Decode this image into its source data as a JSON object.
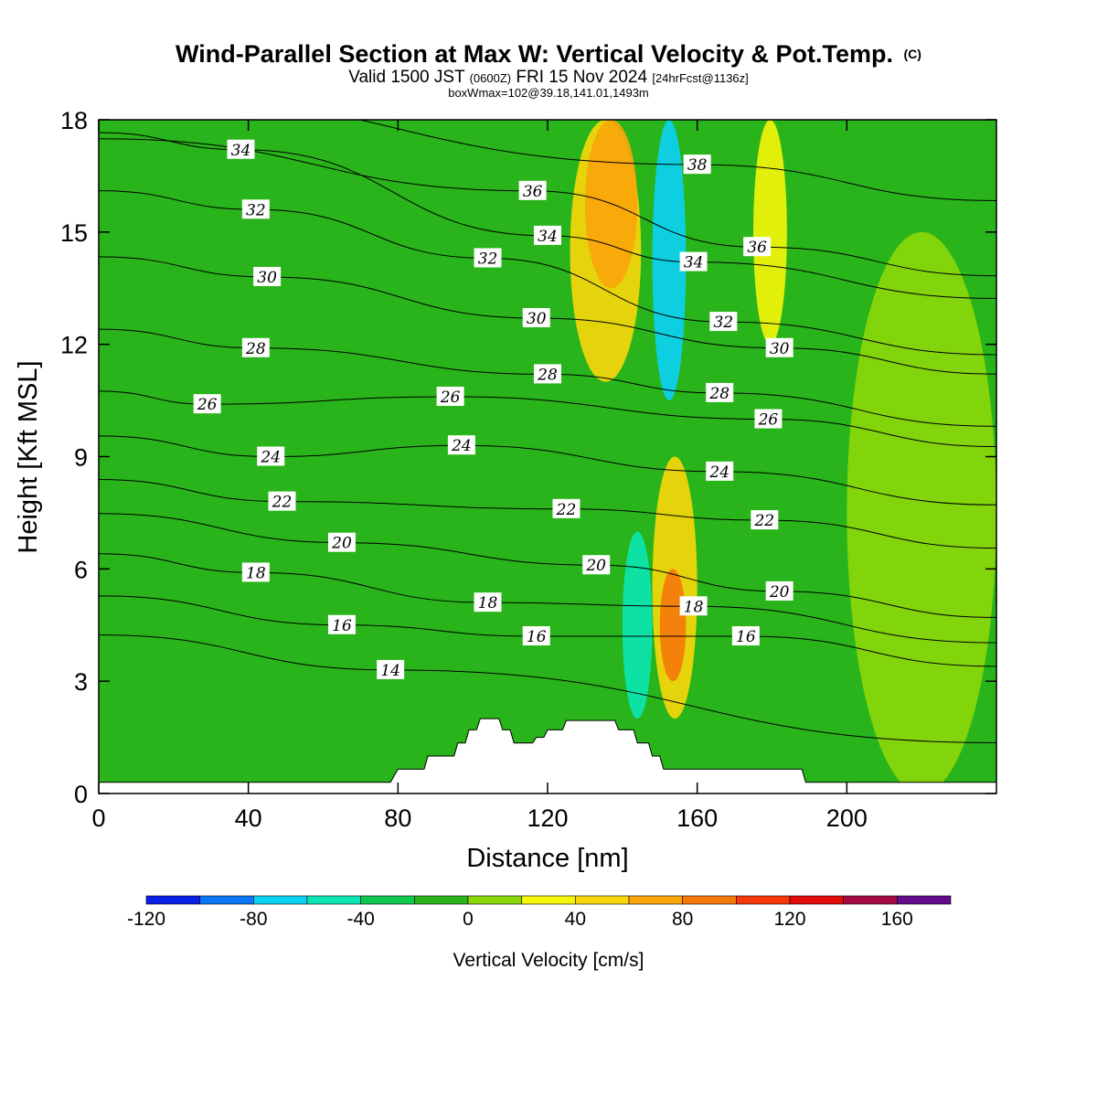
{
  "header": {
    "title": "Wind-Parallel Section at Max W: Vertical Velocity & Pot.Temp.",
    "copyright_mark": "(C)",
    "valid_prefix": "Valid 1500 JST",
    "valid_zulu": "(0600Z)",
    "valid_date": "FRI 15 Nov 2024",
    "forecast": "[24hrFcst@1136z]",
    "box_info": "boxWmax=102@39.18,141.01,1493m"
  },
  "colors": {
    "contour_line": "#000000",
    "terrain": "#ffffff",
    "frame": "#000000"
  },
  "chart_data": {
    "type": "heatmap",
    "xlabel": "Distance [nm]",
    "ylabel": "Height [Kft MSL]",
    "xlim": [
      0,
      240
    ],
    "ylim": [
      0,
      18
    ],
    "x_ticks": [
      0,
      40,
      80,
      120,
      160,
      200
    ],
    "y_ticks": [
      0,
      3,
      6,
      9,
      12,
      15,
      18
    ],
    "colorbar": {
      "label": "Vertical Velocity [cm/s]",
      "bounds": [
        -120,
        -100,
        -80,
        -60,
        -40,
        -20,
        0,
        20,
        40,
        60,
        80,
        100,
        120,
        140,
        160,
        180
      ],
      "colors": [
        "#0b20e6",
        "#0a78f5",
        "#0ad2f5",
        "#0ae6b4",
        "#10c850",
        "#28b41a",
        "#8cd70a",
        "#f5f50a",
        "#fad70a",
        "#faa50a",
        "#f5780a",
        "#f5370a",
        "#e60a0a",
        "#a50a46",
        "#640a8c"
      ],
      "tick_values": [
        -120,
        -80,
        -40,
        0,
        40,
        80,
        120,
        160
      ]
    },
    "w_features": [
      {
        "w": -70,
        "x": [
          148,
          157
        ],
        "y": [
          10.5,
          18
        ]
      },
      {
        "w": -50,
        "x": [
          140,
          148
        ],
        "y": [
          2,
          7
        ]
      },
      {
        "w": 50,
        "x": [
          126,
          145
        ],
        "y": [
          11,
          18
        ]
      },
      {
        "w": 70,
        "x": [
          130,
          144
        ],
        "y": [
          13.5,
          18
        ]
      },
      {
        "w": 50,
        "x": [
          148,
          160
        ],
        "y": [
          2,
          9
        ]
      },
      {
        "w": 85,
        "x": [
          150,
          157
        ],
        "y": [
          3,
          6
        ]
      },
      {
        "w": 30,
        "x": [
          175,
          184
        ],
        "y": [
          12,
          18
        ]
      },
      {
        "w": 10,
        "x": [
          200,
          240
        ],
        "y": [
          0,
          15
        ]
      }
    ],
    "terrain": {
      "x": [
        0,
        78,
        80,
        87,
        88,
        95,
        96,
        98,
        99,
        101,
        102,
        107,
        108,
        110,
        111,
        113,
        114,
        116,
        117,
        119,
        120,
        124,
        125,
        138,
        139,
        143,
        144,
        147,
        148,
        150,
        151,
        188,
        189,
        240
      ],
      "height": [
        0.3,
        0.3,
        0.65,
        0.65,
        1.0,
        1.0,
        1.35,
        1.35,
        1.7,
        1.7,
        2.0,
        2.0,
        1.7,
        1.7,
        1.35,
        1.35,
        1.35,
        1.35,
        1.5,
        1.5,
        1.7,
        1.7,
        1.95,
        1.95,
        1.7,
        1.7,
        1.35,
        1.35,
        1.0,
        1.0,
        0.65,
        0.65,
        0.3,
        0.3
      ]
    },
    "theta_labels": [
      {
        "value": "34",
        "x": 38,
        "y": 17.2
      },
      {
        "value": "32",
        "x": 42,
        "y": 15.6
      },
      {
        "value": "30",
        "x": 45,
        "y": 13.8
      },
      {
        "value": "28",
        "x": 42,
        "y": 11.9
      },
      {
        "value": "26",
        "x": 29,
        "y": 10.4
      },
      {
        "value": "24",
        "x": 46,
        "y": 9.0
      },
      {
        "value": "22",
        "x": 49,
        "y": 7.8
      },
      {
        "value": "20",
        "x": 65,
        "y": 6.7
      },
      {
        "value": "18",
        "x": 42,
        "y": 5.9
      },
      {
        "value": "16",
        "x": 65,
        "y": 4.5
      },
      {
        "value": "14",
        "x": 78,
        "y": 3.3
      },
      {
        "value": "32",
        "x": 104,
        "y": 14.3
      },
      {
        "value": "26",
        "x": 94,
        "y": 10.6
      },
      {
        "value": "24",
        "x": 97,
        "y": 9.3
      },
      {
        "value": "18",
        "x": 104,
        "y": 5.1
      },
      {
        "value": "16",
        "x": 117,
        "y": 4.2
      },
      {
        "value": "36",
        "x": 116,
        "y": 16.1
      },
      {
        "value": "34",
        "x": 120,
        "y": 14.9
      },
      {
        "value": "30",
        "x": 117,
        "y": 12.7
      },
      {
        "value": "28",
        "x": 120,
        "y": 11.2
      },
      {
        "value": "22",
        "x": 125,
        "y": 7.6
      },
      {
        "value": "20",
        "x": 133,
        "y": 6.1
      },
      {
        "value": "38",
        "x": 160,
        "y": 16.8
      },
      {
        "value": "34",
        "x": 159,
        "y": 14.2
      },
      {
        "value": "32",
        "x": 167,
        "y": 12.6
      },
      {
        "value": "28",
        "x": 166,
        "y": 10.7
      },
      {
        "value": "24",
        "x": 166,
        "y": 8.6
      },
      {
        "value": "36",
        "x": 176,
        "y": 14.6
      },
      {
        "value": "30",
        "x": 182,
        "y": 11.9
      },
      {
        "value": "26",
        "x": 179,
        "y": 10.0
      },
      {
        "value": "22",
        "x": 178,
        "y": 7.3
      },
      {
        "value": "20",
        "x": 182,
        "y": 5.4
      },
      {
        "value": "18",
        "x": 159,
        "y": 5.0
      },
      {
        "value": "16",
        "x": 173,
        "y": 4.2
      }
    ]
  }
}
